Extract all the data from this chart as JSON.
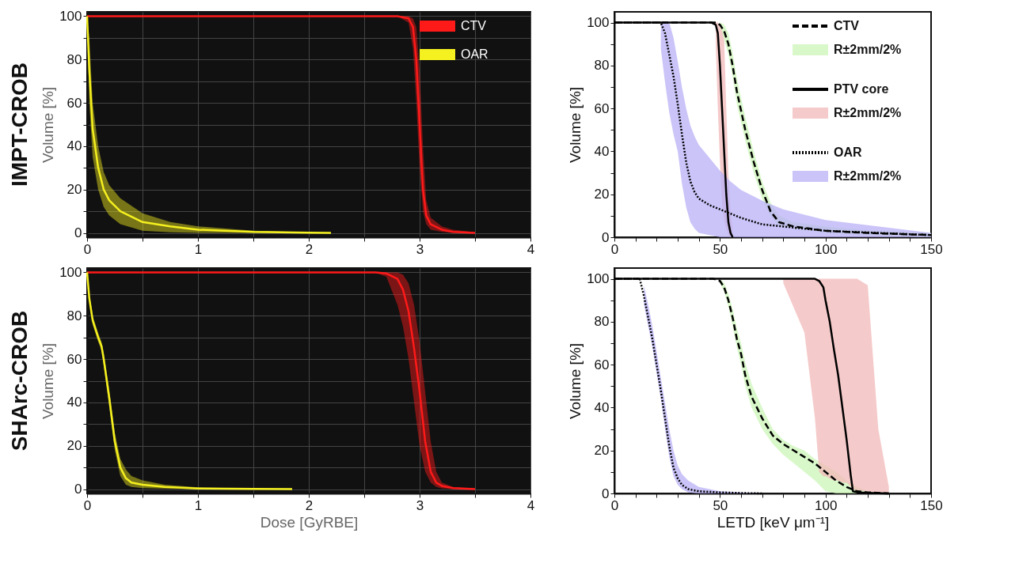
{
  "chart_data": [
    {
      "type": "line",
      "title": "IMPT-CROB",
      "ylabel": "Volume [%]",
      "xlim": [
        0,
        4
      ],
      "ylim": [
        -2,
        102
      ],
      "grid": true,
      "legend": "top right",
      "xticks": [
        0,
        {
          "value": 0.5,
          "label": null
        },
        1,
        {
          "value": 1.5,
          "label": null
        },
        2,
        {
          "value": 2.5,
          "label": null
        },
        3,
        {
          "value": 3.5,
          "label": null
        },
        4
      ],
      "yticks": [
        0,
        {
          "value": 10,
          "label": null
        },
        20,
        {
          "value": 30,
          "label": null
        },
        40,
        {
          "value": 50,
          "label": null
        },
        60,
        {
          "value": 70,
          "label": null
        },
        80,
        {
          "value": 90,
          "label": null
        },
        100
      ],
      "series": [
        {
          "name": "CTV",
          "color": "#ff1a1a",
          "x": [
            0,
            2.8,
            2.9,
            2.94,
            2.97,
            3.0,
            3.03,
            3.06,
            3.1,
            3.2,
            3.3,
            3.5
          ],
          "values": [
            100,
            100,
            99,
            95,
            80,
            50,
            20,
            8,
            4,
            1.5,
            0.5,
            0
          ],
          "lower": [
            100,
            100,
            97,
            85,
            60,
            30,
            10,
            4,
            1.5,
            0.5,
            0,
            0
          ],
          "upper": [
            100,
            100,
            100,
            99,
            95,
            75,
            40,
            15,
            7,
            3,
            1.5,
            0.3
          ]
        },
        {
          "name": "OAR",
          "color": "#f5f01f",
          "x": [
            0,
            0.02,
            0.05,
            0.1,
            0.15,
            0.2,
            0.3,
            0.5,
            0.75,
            1,
            1.5,
            2,
            2.2
          ],
          "values": [
            100,
            75,
            48,
            30,
            20,
            15,
            10,
            5,
            3,
            1.5,
            0.5,
            0.1,
            0
          ],
          "lower": [
            100,
            60,
            35,
            20,
            12,
            8,
            4,
            1,
            0.3,
            0,
            0,
            0,
            0
          ],
          "upper": [
            100,
            90,
            60,
            40,
            28,
            22,
            16,
            9,
            5,
            3,
            1,
            0.3,
            0
          ]
        }
      ]
    },
    {
      "type": "line",
      "ylabel": "Volume [%]",
      "xlim": [
        0,
        150
      ],
      "ylim": [
        0,
        105
      ],
      "legend": "top right",
      "xticks": [
        0,
        {
          "value": 10,
          "label": null
        },
        {
          "value": 20,
          "label": null
        },
        {
          "value": 30,
          "label": null
        },
        {
          "value": 40,
          "label": null
        },
        50,
        {
          "value": 60,
          "label": null
        },
        {
          "value": 70,
          "label": null
        },
        {
          "value": 80,
          "label": null
        },
        {
          "value": 90,
          "label": null
        },
        100,
        {
          "value": 110,
          "label": null
        },
        {
          "value": 120,
          "label": null
        },
        {
          "value": 130,
          "label": null
        },
        {
          "value": 140,
          "label": null
        },
        150
      ],
      "yticks": [
        0,
        {
          "value": 10,
          "label": null
        },
        20,
        {
          "value": 30,
          "label": null
        },
        40,
        {
          "value": 50,
          "label": null
        },
        60,
        {
          "value": 70,
          "label": null
        },
        80,
        {
          "value": 90,
          "label": null
        },
        100
      ],
      "series": [
        {
          "name": "CTV",
          "color": "#000000",
          "line_style": "dashed",
          "x": [
            0,
            48,
            50,
            52,
            54,
            56,
            58,
            62,
            66,
            70,
            74,
            78,
            85,
            100,
            120,
            150
          ],
          "values": [
            100,
            100,
            99,
            96,
            90,
            80,
            68,
            50,
            35,
            22,
            12,
            7,
            5,
            3,
            2,
            1
          ],
          "lower": [
            null,
            null,
            98,
            92,
            85,
            75,
            62,
            45,
            30,
            18,
            10,
            5,
            4,
            2,
            1,
            0
          ],
          "upper": [
            null,
            null,
            100,
            99,
            95,
            86,
            74,
            56,
            40,
            26,
            16,
            10,
            7,
            5,
            3,
            2
          ]
        },
        {
          "name": "R±2mm/2%",
          "type": "area",
          "color": "#ccf5b8"
        },
        {
          "name": "PTV core",
          "color": "#000000",
          "line_style": "solid",
          "x": [
            0,
            46,
            48,
            49,
            50,
            51,
            52,
            53,
            54,
            55,
            56
          ],
          "values": [
            100,
            100,
            99,
            95,
            80,
            60,
            40,
            20,
            7,
            2,
            0
          ],
          "lower": [
            null,
            null,
            90,
            60,
            35,
            15,
            8,
            4,
            1,
            0,
            0
          ],
          "upper": [
            null,
            null,
            100,
            100,
            98,
            96,
            92,
            60,
            30,
            12,
            3
          ]
        },
        {
          "name": "R±2mm/2%",
          "type": "area",
          "color": "#f2b8b8"
        },
        {
          "name": "OAR",
          "color": "#000000",
          "line_style": "dotted",
          "x": [
            0,
            20,
            22,
            24,
            26,
            28,
            30,
            32,
            34,
            36,
            38,
            40,
            45,
            50,
            55,
            60,
            70,
            80,
            100,
            150
          ],
          "values": [
            100,
            100,
            100,
            95,
            85,
            75,
            62,
            48,
            35,
            26,
            21,
            18,
            15,
            13,
            11,
            9,
            6,
            5,
            3,
            1
          ],
          "lower": [
            null,
            null,
            88,
            72,
            58,
            48,
            40,
            25,
            14,
            7,
            4,
            2,
            1,
            0,
            0,
            0,
            0,
            0,
            0,
            0
          ],
          "upper": [
            null,
            null,
            100,
            100,
            100,
            93,
            82,
            70,
            60,
            52,
            47,
            43,
            37,
            31,
            26,
            22,
            17,
            13,
            8,
            2
          ]
        },
        {
          "name": "R±2mm/2%",
          "type": "area",
          "color": "#b8b0f5"
        }
      ]
    },
    {
      "type": "line",
      "title": "SHArc-CROB",
      "xlabel": "Dose [GyRBE]",
      "ylabel": "Volume [%]",
      "xlim": [
        0,
        4
      ],
      "ylim": [
        -2,
        102
      ],
      "grid": true,
      "xticks": [
        0,
        {
          "value": 0.5,
          "label": null
        },
        1,
        {
          "value": 1.5,
          "label": null
        },
        2,
        {
          "value": 2.5,
          "label": null
        },
        3,
        {
          "value": 3.5,
          "label": null
        },
        4
      ],
      "yticks": [
        0,
        {
          "value": 10,
          "label": null
        },
        20,
        {
          "value": 30,
          "label": null
        },
        40,
        {
          "value": 50,
          "label": null
        },
        60,
        {
          "value": 70,
          "label": null
        },
        80,
        {
          "value": 90,
          "label": null
        },
        100
      ],
      "series": [
        {
          "color": "#ff1a1a",
          "x": [
            0,
            2.6,
            2.7,
            2.8,
            2.85,
            2.9,
            2.95,
            3.0,
            3.05,
            3.1,
            3.15,
            3.2,
            3.3,
            3.5
          ],
          "values": [
            100,
            100,
            99.5,
            97,
            92,
            82,
            65,
            45,
            22,
            8,
            3,
            1.5,
            0.5,
            0
          ],
          "lower": [
            100,
            100,
            98,
            85,
            75,
            60,
            40,
            20,
            8,
            3,
            1,
            0.3,
            0,
            0
          ],
          "upper": [
            100,
            100,
            100,
            100,
            99,
            95,
            85,
            68,
            45,
            22,
            8,
            3,
            1,
            0.2
          ]
        },
        {
          "color": "#f5f01f",
          "x": [
            0,
            0.02,
            0.05,
            0.1,
            0.13,
            0.15,
            0.2,
            0.25,
            0.3,
            0.35,
            0.4,
            0.5,
            0.7,
            1,
            1.5,
            1.85
          ],
          "values": [
            100,
            88,
            78,
            70,
            66,
            60,
            42,
            22,
            10,
            5,
            3,
            2,
            1,
            0.3,
            0.1,
            0
          ],
          "lower": [
            100,
            86,
            76,
            68,
            64,
            57,
            38,
            18,
            6,
            2,
            1,
            0.5,
            0.2,
            0,
            0,
            0
          ],
          "upper": [
            100,
            90,
            80,
            72,
            68,
            63,
            46,
            26,
            14,
            9,
            6,
            4,
            2,
            0.8,
            0.3,
            0
          ]
        }
      ]
    },
    {
      "type": "line",
      "xlabel": "LETD [keV μm⁻¹]",
      "ylabel": "Volume [%]",
      "xlim": [
        0,
        150
      ],
      "ylim": [
        0,
        105
      ],
      "xticks": [
        0,
        {
          "value": 10,
          "label": null
        },
        {
          "value": 20,
          "label": null
        },
        {
          "value": 30,
          "label": null
        },
        {
          "value": 40,
          "label": null
        },
        50,
        {
          "value": 60,
          "label": null
        },
        {
          "value": 70,
          "label": null
        },
        {
          "value": 80,
          "label": null
        },
        {
          "value": 90,
          "label": null
        },
        100,
        {
          "value": 110,
          "label": null
        },
        {
          "value": 120,
          "label": null
        },
        {
          "value": 130,
          "label": null
        },
        {
          "value": 140,
          "label": null
        },
        150
      ],
      "yticks": [
        0,
        {
          "value": 10,
          "label": null
        },
        20,
        {
          "value": 30,
          "label": null
        },
        40,
        {
          "value": 50,
          "label": null
        },
        60,
        {
          "value": 70,
          "label": null
        },
        80,
        {
          "value": 90,
          "label": null
        },
        100
      ],
      "series": [
        {
          "color": "#000000",
          "line_style": "dashed",
          "x": [
            0,
            47,
            50,
            52,
            54,
            56,
            58,
            60,
            62,
            65,
            70,
            75,
            80,
            85,
            90,
            95,
            100,
            105,
            110,
            115,
            120,
            130
          ],
          "values": [
            100,
            100,
            99,
            96,
            90,
            82,
            72,
            65,
            55,
            45,
            35,
            27,
            23,
            20,
            17,
            14,
            10,
            6,
            3,
            1,
            0.5,
            0
          ],
          "lower": [
            null,
            null,
            98,
            94,
            87,
            78,
            68,
            60,
            50,
            40,
            30,
            23,
            18,
            14,
            10,
            6,
            1,
            0,
            0,
            0,
            0,
            0
          ],
          "upper": [
            null,
            null,
            100,
            98,
            93,
            86,
            77,
            70,
            61,
            51,
            40,
            30,
            25,
            22,
            20,
            16,
            13,
            10,
            6,
            3,
            1,
            0
          ]
        },
        {
          "type": "area",
          "color": "#ccf5b8"
        },
        {
          "color": "#000000",
          "line_style": "solid",
          "x": [
            0,
            73,
            80,
            90,
            95,
            97,
            99,
            100,
            102,
            104,
            106,
            108,
            110,
            112,
            113,
            115,
            120,
            125,
            130
          ],
          "values": [
            100,
            100,
            100,
            100,
            100,
            99,
            96,
            90,
            80,
            67,
            55,
            40,
            25,
            8,
            1,
            0.5,
            0.3,
            0.1,
            0
          ],
          "lower": [
            null,
            null,
            98,
            75,
            35,
            10,
            8,
            8,
            7,
            6,
            6,
            5,
            5,
            3,
            2,
            1.5,
            1,
            0,
            0
          ],
          "upper": [
            null,
            null,
            100,
            100,
            100,
            100,
            100,
            100,
            100,
            100,
            100,
            100,
            100,
            100,
            100,
            100,
            97,
            30,
            3
          ]
        },
        {
          "type": "area",
          "color": "#f2b8b8"
        },
        {
          "color": "#000000",
          "line_style": "dotted",
          "x": [
            0,
            12,
            14,
            16,
            18,
            20,
            22,
            24,
            26,
            28,
            30,
            32,
            35,
            40,
            50,
            60,
            70
          ],
          "values": [
            100,
            100,
            92,
            82,
            72,
            60,
            48,
            35,
            22,
            12,
            7,
            4,
            2,
            1,
            0.5,
            0.2,
            0
          ],
          "lower": [
            null,
            null,
            88,
            78,
            68,
            56,
            44,
            30,
            17,
            8,
            4,
            2,
            0.5,
            0,
            0,
            0,
            0
          ],
          "upper": [
            null,
            null,
            97,
            88,
            78,
            66,
            54,
            42,
            30,
            20,
            13,
            9,
            6,
            3,
            1,
            0.5,
            0
          ]
        },
        {
          "type": "area",
          "color": "#b8b0f5"
        }
      ]
    }
  ]
}
